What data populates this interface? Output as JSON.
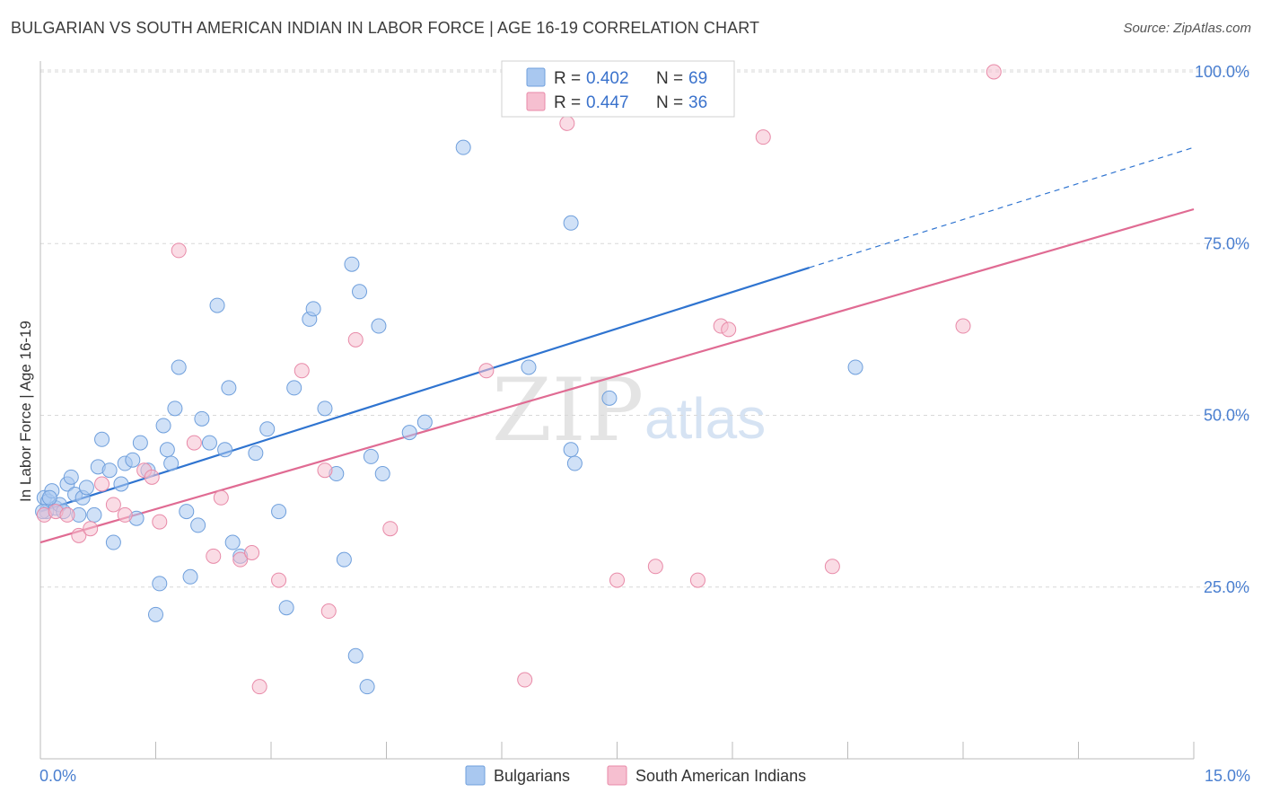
{
  "title": "BULGARIAN VS SOUTH AMERICAN INDIAN IN LABOR FORCE | AGE 16-19 CORRELATION CHART",
  "source": "Source: ZipAtlas.com",
  "watermark": {
    "zip": "ZIP",
    "atlas": "atlas"
  },
  "colors": {
    "blue_fill": "#a9c8f0",
    "blue_stroke": "#6f9fdc",
    "blue_line": "#2f74d0",
    "pink_fill": "#f6bfd0",
    "pink_stroke": "#e88aa8",
    "pink_line": "#e06b93",
    "tick_text": "#4a7fd0",
    "grid": "#d8d8d8"
  },
  "legend": {
    "entries": [
      {
        "r_label": "R =",
        "r_value": "0.402",
        "n_label": "N =",
        "n_value": "69"
      },
      {
        "r_label": "R =",
        "r_value": "0.447",
        "n_label": "N =",
        "n_value": "36"
      }
    ]
  },
  "bottom_legend": [
    "Bulgarians",
    "South American Indians"
  ],
  "chart_data": {
    "type": "scatter",
    "title": "BULGARIAN VS SOUTH AMERICAN INDIAN IN LABOR FORCE | AGE 16-19 CORRELATION CHART",
    "xlabel": "",
    "ylabel": "In Labor Force | Age 16-19",
    "xlim": [
      0,
      15
    ],
    "ylim": [
      0,
      100
    ],
    "x_tick_labels": [
      "0.0%",
      "15.0%"
    ],
    "y_ticks": [
      25,
      50,
      75,
      100
    ],
    "y_tick_labels": [
      "25.0%",
      "50.0%",
      "75.0%",
      "100.0%"
    ],
    "grid": true,
    "legend_position": "top-center",
    "series": [
      {
        "name": "Bulgarians",
        "color": "#a9c8f0",
        "r": 0.402,
        "n": 69,
        "trendline": {
          "x0": 0.0,
          "y0": 36.0,
          "x1": 10.0,
          "y1": 71.5,
          "dashed_to_x": 15.0,
          "dashed_to_y": 89.0
        },
        "points": [
          [
            0.05,
            38
          ],
          [
            0.08,
            36
          ],
          [
            0.1,
            37.5
          ],
          [
            0.15,
            39
          ],
          [
            0.2,
            36.5
          ],
          [
            0.25,
            37
          ],
          [
            0.3,
            36
          ],
          [
            0.35,
            40
          ],
          [
            0.4,
            41
          ],
          [
            0.45,
            38.5
          ],
          [
            0.5,
            35.5
          ],
          [
            0.55,
            38
          ],
          [
            0.6,
            39.5
          ],
          [
            0.7,
            35.5
          ],
          [
            0.75,
            42.5
          ],
          [
            0.8,
            46.5
          ],
          [
            0.9,
            42
          ],
          [
            0.95,
            31.5
          ],
          [
            1.05,
            40
          ],
          [
            1.1,
            43
          ],
          [
            1.2,
            43.5
          ],
          [
            1.25,
            35
          ],
          [
            1.3,
            46
          ],
          [
            1.4,
            42
          ],
          [
            1.5,
            21
          ],
          [
            1.55,
            25.5
          ],
          [
            1.6,
            48.5
          ],
          [
            1.65,
            45
          ],
          [
            1.7,
            43
          ],
          [
            1.75,
            51
          ],
          [
            1.8,
            57
          ],
          [
            1.9,
            36
          ],
          [
            1.95,
            26.5
          ],
          [
            2.05,
            34
          ],
          [
            2.1,
            49.5
          ],
          [
            2.2,
            46
          ],
          [
            2.3,
            66
          ],
          [
            2.4,
            45
          ],
          [
            2.45,
            54
          ],
          [
            2.5,
            31.5
          ],
          [
            2.6,
            29.5
          ],
          [
            2.8,
            44.5
          ],
          [
            2.95,
            48
          ],
          [
            3.1,
            36
          ],
          [
            3.2,
            22
          ],
          [
            3.3,
            54
          ],
          [
            3.5,
            64
          ],
          [
            3.55,
            65.5
          ],
          [
            3.7,
            51
          ],
          [
            3.85,
            41.5
          ],
          [
            3.95,
            29
          ],
          [
            4.05,
            72
          ],
          [
            4.1,
            15
          ],
          [
            4.15,
            68
          ],
          [
            4.25,
            10.5
          ],
          [
            4.3,
            44
          ],
          [
            4.4,
            63
          ],
          [
            4.45,
            41.5
          ],
          [
            4.8,
            47.5
          ],
          [
            5.0,
            49
          ],
          [
            5.5,
            89
          ],
          [
            6.35,
            57
          ],
          [
            6.9,
            78
          ],
          [
            6.9,
            45
          ],
          [
            6.95,
            43
          ],
          [
            7.4,
            52.5
          ],
          [
            10.6,
            57
          ],
          [
            0.03,
            36
          ],
          [
            0.12,
            38
          ]
        ]
      },
      {
        "name": "South American Indians",
        "color": "#f6bfd0",
        "r": 0.447,
        "n": 36,
        "trendline": {
          "x0": 0.0,
          "y0": 31.5,
          "x1": 15.0,
          "y1": 80.0
        },
        "points": [
          [
            0.05,
            35.5
          ],
          [
            0.2,
            36
          ],
          [
            0.35,
            35.5
          ],
          [
            0.5,
            32.5
          ],
          [
            0.65,
            33.5
          ],
          [
            0.8,
            40
          ],
          [
            0.95,
            37
          ],
          [
            1.1,
            35.5
          ],
          [
            1.35,
            42
          ],
          [
            1.45,
            41
          ],
          [
            1.55,
            34.5
          ],
          [
            1.8,
            74
          ],
          [
            2.0,
            46
          ],
          [
            2.25,
            29.5
          ],
          [
            2.35,
            38
          ],
          [
            2.6,
            29
          ],
          [
            2.75,
            30
          ],
          [
            2.85,
            10.5
          ],
          [
            3.1,
            26
          ],
          [
            3.4,
            56.5
          ],
          [
            3.7,
            42
          ],
          [
            3.75,
            21.5
          ],
          [
            4.1,
            61
          ],
          [
            4.55,
            33.5
          ],
          [
            5.8,
            56.5
          ],
          [
            6.3,
            11.5
          ],
          [
            6.85,
            92.5
          ],
          [
            7.5,
            26
          ],
          [
            8.0,
            28
          ],
          [
            8.55,
            26
          ],
          [
            8.85,
            63
          ],
          [
            8.95,
            62.5
          ],
          [
            9.4,
            90.5
          ],
          [
            10.3,
            28
          ],
          [
            12.0,
            63
          ],
          [
            12.4,
            100
          ]
        ]
      }
    ]
  }
}
